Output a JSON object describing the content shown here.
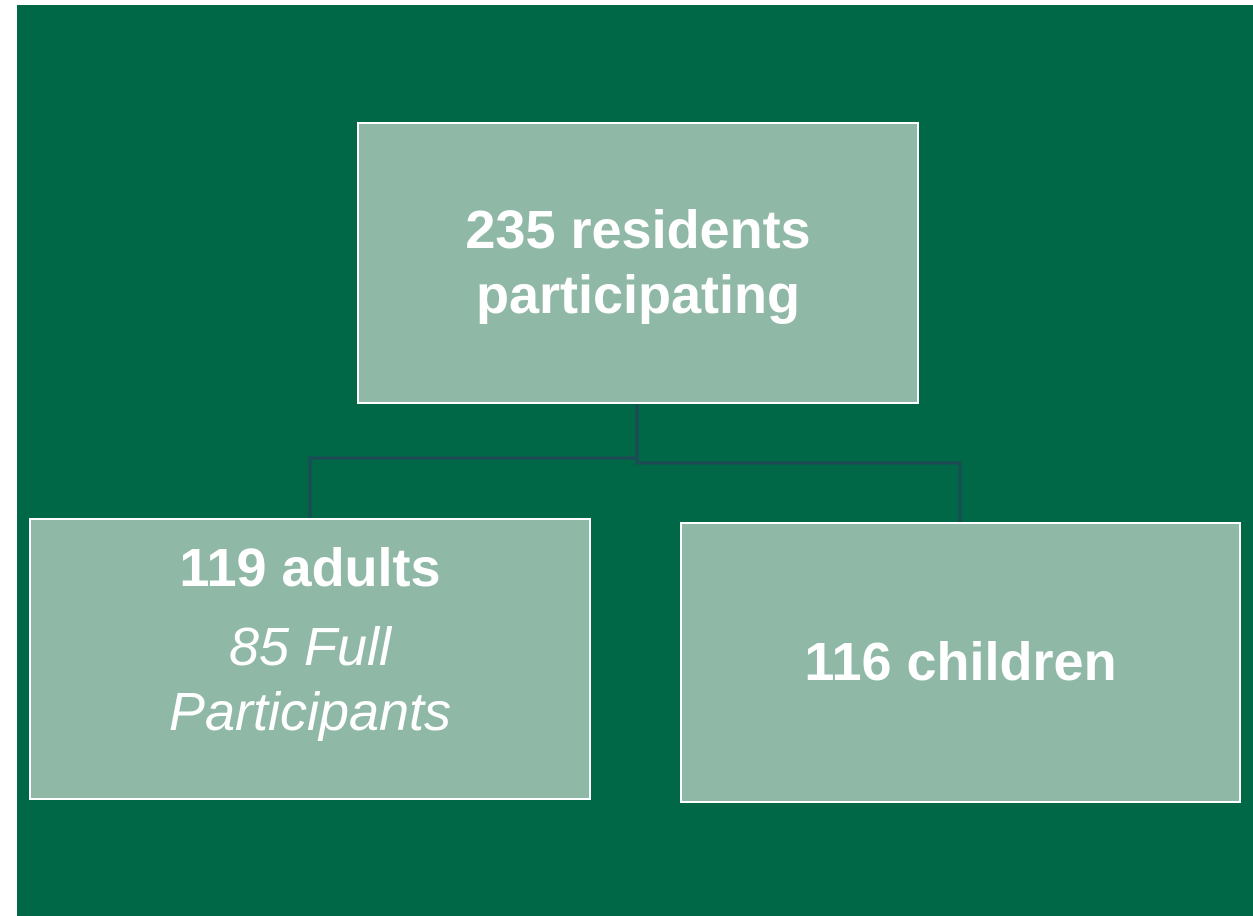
{
  "nodes": [
    {
      "label": "235 residents participating"
    },
    {
      "label": "119 adults",
      "sublabel": "85 Full Participants"
    },
    {
      "label": "116 children"
    }
  ]
}
